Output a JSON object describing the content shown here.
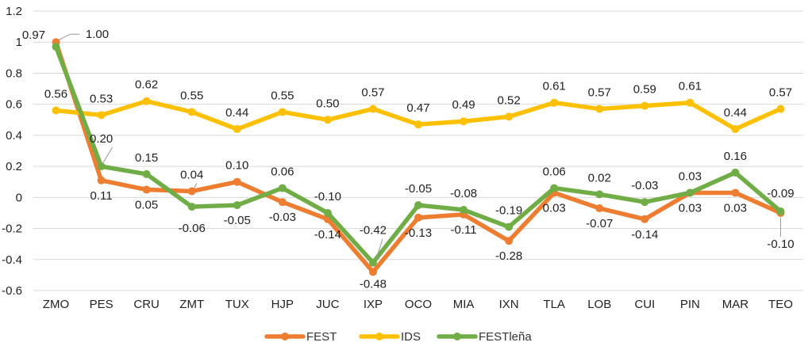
{
  "chart_data": {
    "type": "line",
    "categories": [
      "ZMO",
      "PES",
      "CRU",
      "ZMT",
      "TUX",
      "HJP",
      "JUC",
      "IXP",
      "OCO",
      "MIA",
      "IXN",
      "TLA",
      "LOB",
      "CUI",
      "PIN",
      "MAR",
      "TEO"
    ],
    "ylim": [
      -0.6,
      1.2
    ],
    "yticks": [
      -0.6,
      -0.4,
      -0.2,
      0,
      0.2,
      0.4,
      0.6,
      0.8,
      1,
      1.2
    ],
    "ytick_labels": [
      "-0.6",
      "-0.4",
      "-0.2",
      "0",
      "0.2",
      "0.4",
      "0.6",
      "0.8",
      "1",
      "1.2"
    ],
    "grid": true,
    "legend_position": "bottom",
    "series": [
      {
        "name": "FEST",
        "color": "#ED7D31",
        "values": [
          1.0,
          0.11,
          0.05,
          0.04,
          0.1,
          -0.03,
          -0.14,
          -0.48,
          -0.13,
          -0.11,
          -0.28,
          0.03,
          -0.07,
          -0.14,
          0.03,
          0.03,
          -0.1
        ],
        "labels": [
          "1.00",
          "0.11",
          "0.05",
          "0.04",
          "0.10",
          "-0.03",
          "-0.14",
          "-0.48",
          "-0.13",
          "-0.11",
          "-0.28",
          "0.03",
          "-0.07",
          "-0.14",
          "0.03",
          "0.03",
          "-0.10"
        ]
      },
      {
        "name": "IDS",
        "color": "#FFC000",
        "values": [
          0.56,
          0.53,
          0.62,
          0.55,
          0.44,
          0.55,
          0.5,
          0.57,
          0.47,
          0.49,
          0.52,
          0.61,
          0.57,
          0.59,
          0.61,
          0.44,
          0.57
        ],
        "labels": [
          "0.56",
          "0.53",
          "0.62",
          "0.55",
          "0.44",
          "0.55",
          "0.50",
          "0.57",
          "0.47",
          "0.49",
          "0.52",
          "0.61",
          "0.57",
          "0.59",
          "0.61",
          "0.44",
          "0.57"
        ]
      },
      {
        "name": "FESTleña",
        "color": "#70AD47",
        "values": [
          0.97,
          0.2,
          0.15,
          -0.06,
          -0.05,
          0.06,
          -0.1,
          -0.42,
          -0.05,
          -0.08,
          -0.19,
          0.06,
          0.02,
          -0.03,
          0.03,
          0.16,
          -0.09
        ],
        "labels": [
          "0.97",
          "0.20",
          "0.15",
          "-0.06",
          "-0.05",
          "0.06",
          "-0.10",
          "-0.42",
          "-0.05",
          "-0.08",
          "-0.19",
          "0.06",
          "0.02",
          "-0.03",
          "0.03",
          "0.16",
          "-0.09"
        ]
      }
    ]
  }
}
